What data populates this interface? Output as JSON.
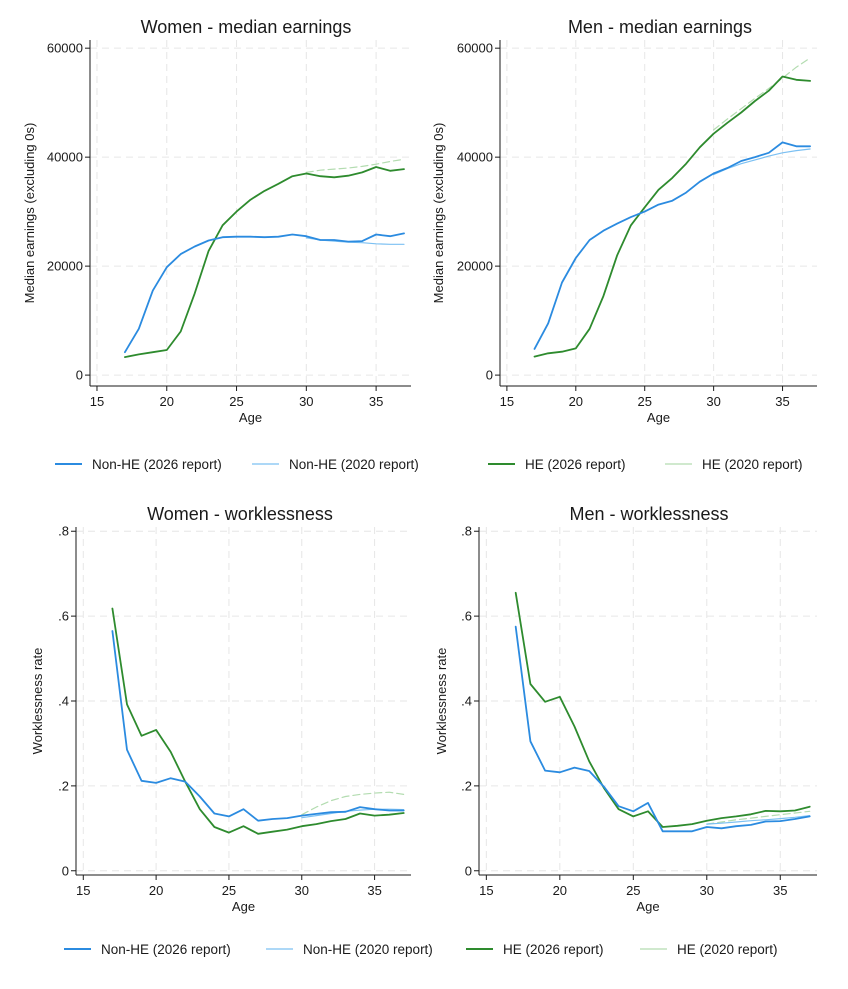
{
  "colors": {
    "nonhe2026": "#2b8be0",
    "nonhe2020": "#7cc0f2",
    "he2026": "#2e8b2e",
    "he2020": "#b3dcb0"
  },
  "legends": [
    {
      "items": [
        {
          "label": "Non-HE (2026 report)",
          "color": "#2b8be0",
          "width": 2,
          "dash": ""
        },
        {
          "label": "Non-HE (2020 report)",
          "color": "#7cc0f2",
          "width": 1.2,
          "dash": ""
        },
        {
          "label": "HE (2026 report)",
          "color": "#2e8b2e",
          "width": 2,
          "dash": ""
        },
        {
          "label": "HE (2020 report)",
          "color": "#b3dcb0",
          "width": 1.2,
          "dash": ""
        }
      ]
    },
    {
      "items": [
        {
          "label": "Non-HE (2026 report)",
          "color": "#2b8be0",
          "width": 2,
          "dash": ""
        },
        {
          "label": "Non-HE (2020 report)",
          "color": "#7cc0f2",
          "width": 1.2,
          "dash": ""
        },
        {
          "label": "HE (2026 report)",
          "color": "#2e8b2e",
          "width": 2,
          "dash": ""
        },
        {
          "label": "HE (2020 report)",
          "color": "#b3dcb0",
          "width": 1.2,
          "dash": ""
        }
      ]
    }
  ],
  "chart_data": [
    {
      "type": "line",
      "title": "Women - median earnings",
      "xlabel": "Age",
      "ylabel": "Median earnings (excluding 0s)",
      "xlim": [
        14.5,
        37.5
      ],
      "ylim": [
        -2000,
        61500
      ],
      "xticks": [
        15,
        20,
        25,
        30,
        35
      ],
      "xtick_labels": [
        "15",
        "20",
        "25",
        "30",
        "35"
      ],
      "yticks": [
        0,
        20000,
        40000,
        60000
      ],
      "ytick_labels": [
        "0",
        "20000",
        "40000",
        "60000"
      ],
      "grid": true,
      "series": [
        {
          "name": "Non-HE (2026 report)",
          "color": "#2b8be0",
          "width": 1.8,
          "dash": "",
          "x": [
            17,
            18,
            19,
            20,
            21,
            22,
            23,
            24,
            25,
            26,
            27,
            28,
            29,
            30,
            31,
            32,
            33,
            34,
            35,
            36,
            37
          ],
          "y": [
            4200,
            8500,
            15500,
            19800,
            22200,
            23600,
            24700,
            25300,
            25400,
            25400,
            25300,
            25400,
            25800,
            25500,
            24800,
            24800,
            24500,
            24600,
            25800,
            25500,
            26000
          ]
        },
        {
          "name": "Non-HE (2020 report)",
          "color": "#7cc0f2",
          "width": 1.2,
          "dash": "",
          "x": [
            30,
            31,
            32,
            33,
            34,
            35,
            36,
            37
          ],
          "y": [
            25200,
            24800,
            24600,
            24400,
            24300,
            24100,
            24000,
            24000
          ]
        },
        {
          "name": "HE (2026 report)",
          "color": "#2e8b2e",
          "width": 1.8,
          "dash": "",
          "x": [
            17,
            18,
            19,
            20,
            21,
            22,
            23,
            24,
            25,
            26,
            27,
            28,
            29,
            30,
            31,
            32,
            33,
            34,
            35,
            36,
            37
          ],
          "y": [
            3300,
            3800,
            4200,
            4600,
            8000,
            15000,
            22800,
            27500,
            30000,
            32200,
            33800,
            35100,
            36500,
            37000,
            36500,
            36300,
            36600,
            37200,
            38200,
            37500,
            37800
          ]
        },
        {
          "name": "HE (2020 report)",
          "color": "#b3dcb0",
          "width": 1.2,
          "dash": "7 4",
          "x": [
            30,
            31,
            32,
            33,
            34,
            35,
            36,
            37
          ],
          "y": [
            37200,
            37600,
            37800,
            38000,
            38300,
            38700,
            39200,
            39600
          ]
        }
      ]
    },
    {
      "type": "line",
      "title": "Men - median earnings",
      "xlabel": "Age",
      "ylabel": "Median earnings (excluding 0s)",
      "xlim": [
        14.5,
        37.5
      ],
      "ylim": [
        -2000,
        61500
      ],
      "xticks": [
        15,
        20,
        25,
        30,
        35
      ],
      "xtick_labels": [
        "15",
        "20",
        "25",
        "30",
        "35"
      ],
      "yticks": [
        0,
        20000,
        40000,
        60000
      ],
      "ytick_labels": [
        "0",
        "20000",
        "40000",
        "60000"
      ],
      "grid": true,
      "series": [
        {
          "name": "Non-HE (2026 report)",
          "color": "#2b8be0",
          "width": 1.8,
          "dash": "",
          "x": [
            17,
            18,
            19,
            20,
            21,
            22,
            23,
            24,
            25,
            26,
            27,
            28,
            29,
            30,
            31,
            32,
            33,
            34,
            35,
            36,
            37
          ],
          "y": [
            4800,
            9500,
            17000,
            21500,
            24800,
            26500,
            27800,
            29000,
            30000,
            31300,
            32000,
            33500,
            35500,
            37000,
            38000,
            39300,
            40000,
            40800,
            42700,
            42000,
            42000
          ]
        },
        {
          "name": "Non-HE (2020 report)",
          "color": "#7cc0f2",
          "width": 1.2,
          "dash": "",
          "x": [
            30,
            31,
            32,
            33,
            34,
            35,
            36,
            37
          ],
          "y": [
            36800,
            37900,
            38800,
            39500,
            40200,
            40800,
            41200,
            41500
          ]
        },
        {
          "name": "HE (2026 report)",
          "color": "#2e8b2e",
          "width": 1.8,
          "dash": "",
          "x": [
            17,
            18,
            19,
            20,
            21,
            22,
            23,
            24,
            25,
            26,
            27,
            28,
            29,
            30,
            31,
            32,
            33,
            34,
            35,
            36,
            37
          ],
          "y": [
            3400,
            4000,
            4300,
            4900,
            8500,
            14500,
            22000,
            27500,
            30800,
            34000,
            36200,
            38800,
            41800,
            44300,
            46300,
            48200,
            50300,
            52200,
            54800,
            54200,
            54000
          ]
        },
        {
          "name": "HE (2020 report)",
          "color": "#b3dcb0",
          "width": 1.2,
          "dash": "7 4",
          "x": [
            30,
            31,
            32,
            33,
            34,
            35,
            36,
            37
          ],
          "y": [
            45000,
            47000,
            48900,
            50800,
            52600,
            54500,
            56500,
            58200
          ]
        }
      ]
    },
    {
      "type": "line",
      "title": "Women - worklessness",
      "xlabel": "Age",
      "ylabel": "Worklessness rate",
      "xlim": [
        14.5,
        37.5
      ],
      "ylim": [
        -0.01,
        0.81
      ],
      "xticks": [
        15,
        20,
        25,
        30,
        35
      ],
      "xtick_labels": [
        "15",
        "20",
        "25",
        "30",
        "35"
      ],
      "yticks": [
        0,
        0.2,
        0.4,
        0.6,
        0.8
      ],
      "ytick_labels": [
        "0",
        ".2",
        ".4",
        ".6",
        ".8"
      ],
      "grid": true,
      "series": [
        {
          "name": "Non-HE (2026 report)",
          "color": "#2b8be0",
          "width": 1.8,
          "dash": "",
          "x": [
            17,
            18,
            19,
            20,
            21,
            22,
            23,
            24,
            25,
            26,
            27,
            28,
            29,
            30,
            31,
            32,
            33,
            34,
            35,
            36,
            37
          ],
          "y": [
            0.565,
            0.285,
            0.212,
            0.207,
            0.218,
            0.21,
            0.175,
            0.135,
            0.128,
            0.145,
            0.118,
            0.122,
            0.124,
            0.13,
            0.134,
            0.138,
            0.139,
            0.15,
            0.145,
            0.142,
            0.142
          ]
        },
        {
          "name": "Non-HE (2020 report)",
          "color": "#7cc0f2",
          "width": 1.2,
          "dash": "",
          "x": [
            30,
            31,
            32,
            33,
            34,
            35,
            36,
            37
          ],
          "y": [
            0.125,
            0.13,
            0.135,
            0.14,
            0.143,
            0.145,
            0.145,
            0.144
          ]
        },
        {
          "name": "HE (2026 report)",
          "color": "#2e8b2e",
          "width": 1.8,
          "dash": "",
          "x": [
            17,
            18,
            19,
            20,
            21,
            22,
            23,
            24,
            25,
            26,
            27,
            28,
            29,
            30,
            31,
            32,
            33,
            34,
            35,
            36,
            37
          ],
          "y": [
            0.618,
            0.392,
            0.318,
            0.332,
            0.28,
            0.21,
            0.145,
            0.103,
            0.09,
            0.105,
            0.087,
            0.092,
            0.097,
            0.105,
            0.11,
            0.117,
            0.122,
            0.135,
            0.13,
            0.132,
            0.136
          ]
        },
        {
          "name": "HE (2020 report)",
          "color": "#b3dcb0",
          "width": 1.2,
          "dash": "7 4",
          "x": [
            30,
            31,
            32,
            33,
            34,
            35,
            36,
            37
          ],
          "y": [
            0.132,
            0.15,
            0.165,
            0.175,
            0.18,
            0.183,
            0.185,
            0.18
          ]
        }
      ]
    },
    {
      "type": "line",
      "title": "Men - worklessness",
      "xlabel": "Age",
      "ylabel": "Worklessness rate",
      "xlim": [
        14.5,
        37.5
      ],
      "ylim": [
        -0.01,
        0.81
      ],
      "xticks": [
        15,
        20,
        25,
        30,
        35
      ],
      "xtick_labels": [
        "15",
        "20",
        "25",
        "30",
        "35"
      ],
      "yticks": [
        0,
        0.2,
        0.4,
        0.6,
        0.8
      ],
      "ytick_labels": [
        "0",
        ".2",
        ".4",
        ".6",
        ".8"
      ],
      "grid": true,
      "series": [
        {
          "name": "Non-HE (2026 report)",
          "color": "#2b8be0",
          "width": 1.8,
          "dash": "",
          "x": [
            17,
            18,
            19,
            20,
            21,
            22,
            23,
            24,
            25,
            26,
            27,
            28,
            29,
            30,
            31,
            32,
            33,
            34,
            35,
            36,
            37
          ],
          "y": [
            0.575,
            0.305,
            0.236,
            0.232,
            0.243,
            0.235,
            0.198,
            0.152,
            0.14,
            0.16,
            0.093,
            0.093,
            0.093,
            0.103,
            0.1,
            0.105,
            0.108,
            0.116,
            0.117,
            0.122,
            0.128
          ]
        },
        {
          "name": "Non-HE (2020 report)",
          "color": "#7cc0f2",
          "width": 1.2,
          "dash": "",
          "x": [
            30,
            31,
            32,
            33,
            34,
            35,
            36,
            37
          ],
          "y": [
            0.11,
            0.112,
            0.115,
            0.118,
            0.12,
            0.123,
            0.126,
            0.13
          ]
        },
        {
          "name": "HE (2026 report)",
          "color": "#2e8b2e",
          "width": 1.8,
          "dash": "",
          "x": [
            17,
            18,
            19,
            20,
            21,
            22,
            23,
            24,
            25,
            26,
            27,
            28,
            29,
            30,
            31,
            32,
            33,
            34,
            35,
            36,
            37
          ],
          "y": [
            0.655,
            0.44,
            0.398,
            0.41,
            0.34,
            0.258,
            0.195,
            0.145,
            0.128,
            0.14,
            0.103,
            0.106,
            0.11,
            0.118,
            0.124,
            0.128,
            0.133,
            0.141,
            0.14,
            0.142,
            0.151
          ]
        },
        {
          "name": "HE (2020 report)",
          "color": "#b3dcb0",
          "width": 1.2,
          "dash": "7 4",
          "x": [
            30,
            31,
            32,
            33,
            34,
            35,
            36,
            37
          ],
          "y": [
            0.11,
            0.115,
            0.12,
            0.124,
            0.128,
            0.132,
            0.136,
            0.14
          ]
        }
      ]
    }
  ]
}
